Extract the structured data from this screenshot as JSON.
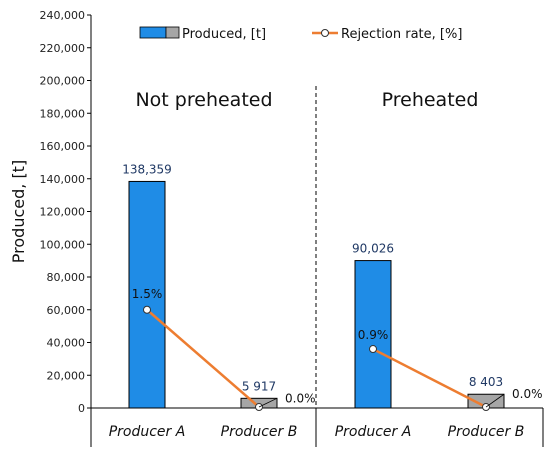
{
  "chart_data": {
    "type": "bar",
    "ylabel": "Produced, [t]",
    "ylim": [
      0,
      240000
    ],
    "yticks": [
      0,
      20000,
      40000,
      60000,
      80000,
      100000,
      120000,
      140000,
      160000,
      180000,
      200000,
      220000,
      240000
    ],
    "ytick_labels": [
      "0",
      "20,000",
      "40,000",
      "60,000",
      "80,000",
      "100,000",
      "120,000",
      "140,000",
      "160,000",
      "180,000",
      "200,000",
      "220,000",
      "240,000"
    ],
    "groups": [
      "Not preheated",
      "Preheated"
    ],
    "categories": [
      "Producer A",
      "Producer B",
      "Producer A",
      "Producer B"
    ],
    "series": [
      {
        "name": "Produced, [t]",
        "type": "bar",
        "colors": [
          "#1f8ce6",
          "#a6a6a6",
          "#1f8ce6",
          "#a6a6a6"
        ],
        "values": [
          138359,
          5917,
          90026,
          8403
        ],
        "labels": [
          "138,359",
          "5 917",
          "90,026",
          "8 403"
        ]
      },
      {
        "name": "Rejection rate, [%]",
        "type": "line",
        "color": "#ed7d31",
        "values": [
          1.5,
          0.0,
          0.9,
          0.0
        ],
        "labels": [
          "1.5%",
          "0.0%",
          "0.9%",
          "0.0%"
        ]
      }
    ],
    "legend_position": "top",
    "grid": false
  }
}
